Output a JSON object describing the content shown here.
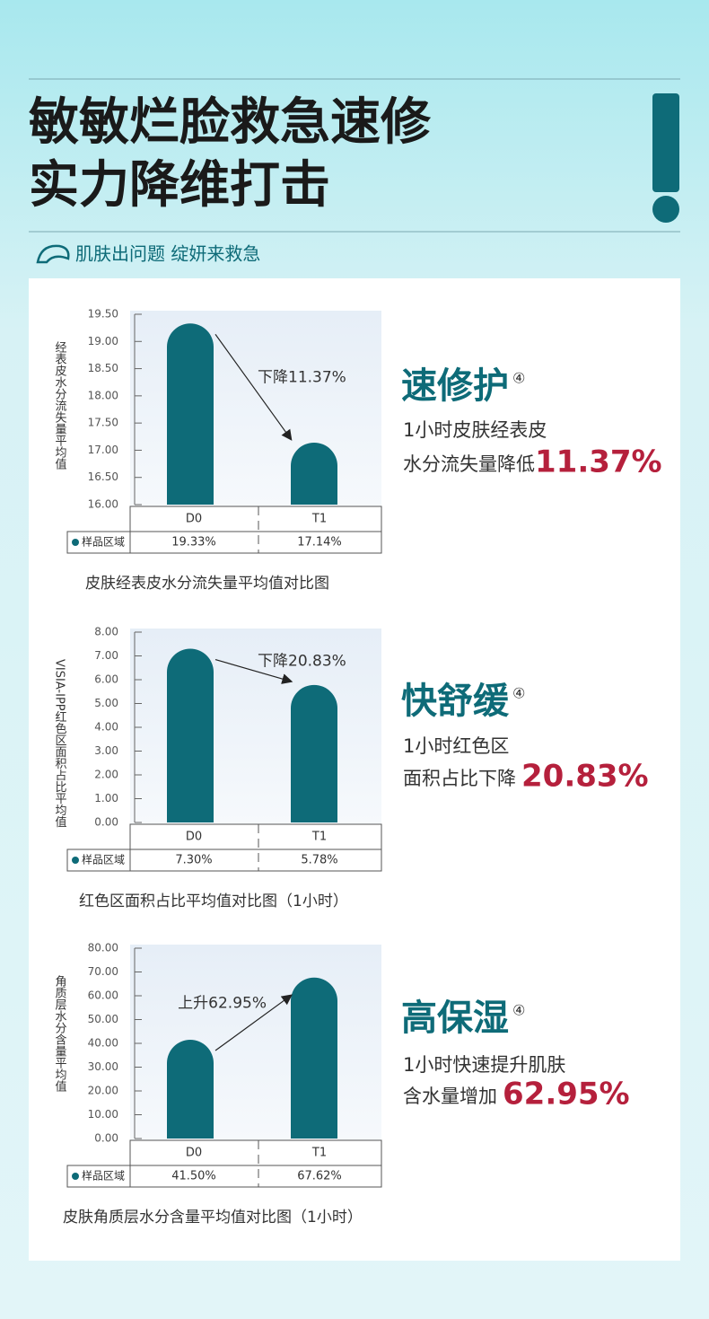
{
  "header": {
    "title_lines": [
      "敏敏烂脸救急速修",
      "实力降维打击"
    ],
    "tagline": "肌肤出问题 绽妍来救急"
  },
  "chart_data": [
    {
      "type": "bar",
      "y_label": "经表皮水分流失量平均值",
      "categories": [
        "D0",
        "T1"
      ],
      "values": [
        19.33,
        17.14
      ],
      "value_labels": [
        "19.33%",
        "17.14%"
      ],
      "row_label": "样品区域",
      "annotation": "下降11.37%",
      "caption": "皮肤经表皮水分流失量平均值对比图",
      "color": "#0e6b78",
      "ylim": [
        16,
        19.5
      ],
      "yticks": [
        {
          "value": 16,
          "label": "16.00"
        },
        {
          "value": 16.5,
          "label": "16.50"
        },
        {
          "value": 17,
          "label": "17.00"
        },
        {
          "value": 17.5,
          "label": "17.50"
        },
        {
          "value": 18,
          "label": "18.00"
        },
        {
          "value": 18.5,
          "label": "18.50"
        },
        {
          "value": 19,
          "label": "19.00"
        },
        {
          "value": 19.5,
          "label": "19.50"
        }
      ],
      "claim": {
        "title": "速修护",
        "note": "④",
        "lines": [
          "1小时皮肤经表皮",
          "水分流失量降低"
        ],
        "highlight": "11.37%"
      }
    },
    {
      "type": "bar",
      "y_label": "VISIA-IPP红色区面积占比平均值",
      "categories": [
        "D0",
        "T1"
      ],
      "values": [
        7.3,
        5.78
      ],
      "value_labels": [
        "7.30%",
        "5.78%"
      ],
      "row_label": "样品区域",
      "annotation": "下降20.83%",
      "caption": "红色区面积占比平均值对比图（1小时）",
      "color": "#0e6b78",
      "ylim": [
        0,
        8
      ],
      "yticks": [
        {
          "value": 0,
          "label": "0.00"
        },
        {
          "value": 1,
          "label": "1.00"
        },
        {
          "value": 2,
          "label": "2.00"
        },
        {
          "value": 3,
          "label": "3.00"
        },
        {
          "value": 4,
          "label": "4.00"
        },
        {
          "value": 5,
          "label": "5.00"
        },
        {
          "value": 6,
          "label": "6.00"
        },
        {
          "value": 7,
          "label": "7.00"
        },
        {
          "value": 8,
          "label": "8.00"
        }
      ],
      "claim": {
        "title": "快舒缓",
        "note": "④",
        "lines": [
          "1小时红色区",
          "面积占比下降"
        ],
        "highlight": "20.83%"
      }
    },
    {
      "type": "bar",
      "y_label": "角质层水分含量平均值",
      "categories": [
        "D0",
        "T1"
      ],
      "values": [
        41.5,
        67.62
      ],
      "value_labels": [
        "41.50%",
        "67.62%"
      ],
      "row_label": "样品区域",
      "annotation": "上升62.95%",
      "caption": "皮肤角质层水分含量平均值对比图（1小时）",
      "color": "#0e6b78",
      "ylim": [
        0,
        80
      ],
      "yticks": [
        {
          "value": 0,
          "label": "0.00"
        },
        {
          "value": 10,
          "label": "10.00"
        },
        {
          "value": 20,
          "label": "20.00"
        },
        {
          "value": 30,
          "label": "30.00"
        },
        {
          "value": 40,
          "label": "40.00"
        },
        {
          "value": 50,
          "label": "50.00"
        },
        {
          "value": 60,
          "label": "60.00"
        },
        {
          "value": 70,
          "label": "70.00"
        },
        {
          "value": 80,
          "label": "80.00"
        }
      ],
      "claim": {
        "title": "高保湿",
        "note": "④",
        "lines": [
          "1小时快速提升肌肤",
          "含水量增加"
        ],
        "highlight": "62.95%"
      }
    }
  ]
}
